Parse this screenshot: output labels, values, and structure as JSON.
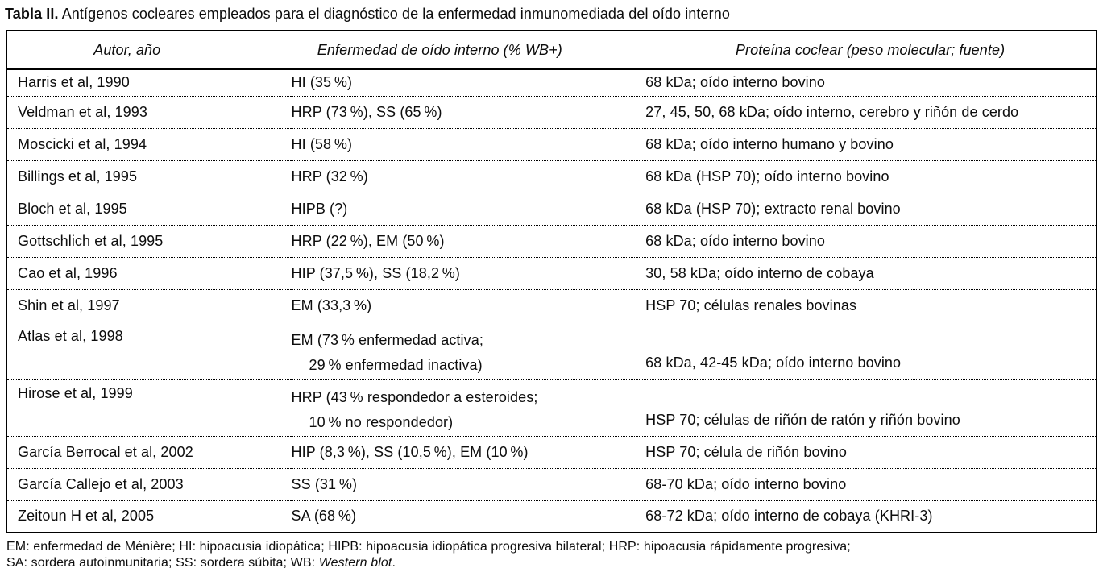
{
  "page": {
    "title_label": "Tabla II.",
    "title_text": "Antígenos cocleares empleados para el diagnóstico de la enfermedad inmunomediada del oído interno"
  },
  "table": {
    "columns": [
      "Autor, año",
      "Enfermedad de oído interno (% WB+)",
      "Proteína coclear (peso molecular; fuente)"
    ],
    "rows": [
      {
        "author": "Harris et al, 1990",
        "disease": [
          "HI (35 %)"
        ],
        "protein": "68 kDa; oído interno bovino"
      },
      {
        "author": "Veldman et al, 1993",
        "disease": [
          "HRP (73 %), SS (65 %)"
        ],
        "protein": "27, 45, 50, 68 kDa; oído interno, cerebro y riñón de cerdo"
      },
      {
        "author": "Moscicki et al, 1994",
        "disease": [
          "HI (58 %)"
        ],
        "protein": "68 kDa; oído interno humano y bovino"
      },
      {
        "author": "Billings et al, 1995",
        "disease": [
          "HRP (32 %)"
        ],
        "protein": "68 kDa (HSP 70); oído interno bovino"
      },
      {
        "author": "Bloch et al, 1995",
        "disease": [
          "HIPB (?)"
        ],
        "protein": "68 kDa (HSP 70); extracto renal bovino"
      },
      {
        "author": "Gottschlich et al, 1995",
        "disease": [
          "HRP (22 %), EM (50 %)"
        ],
        "protein": "68 kDa; oído interno bovino"
      },
      {
        "author": "Cao et al, 1996",
        "disease": [
          "HIP (37,5 %), SS (18,2 %)"
        ],
        "protein": "30, 58 kDa; oído interno de cobaya"
      },
      {
        "author": "Shin et al, 1997",
        "disease": [
          "EM (33,3 %)"
        ],
        "protein": "HSP 70; células renales bovinas"
      },
      {
        "author": "Atlas et al, 1998",
        "disease": [
          "EM (73 % enfermedad activa;",
          "29 % enfermedad inactiva)"
        ],
        "protein": "68 kDa, 42-45 kDa; oído interno bovino"
      },
      {
        "author": "Hirose et al, 1999",
        "disease": [
          "HRP (43 % respondedor a esteroides;",
          "10 % no respondedor)"
        ],
        "protein": "HSP 70; células de riñón de ratón y riñón bovino"
      },
      {
        "author": "García Berrocal et al, 2002",
        "disease": [
          "HIP (8,3 %), SS (10,5 %), EM (10 %)"
        ],
        "protein": "HSP 70; célula de riñón bovino"
      },
      {
        "author": "García Callejo et al, 2003",
        "disease": [
          "SS (31 %)"
        ],
        "protein": "68-70 kDa; oído interno bovino"
      },
      {
        "author": "Zeitoun H et al, 2005",
        "disease": [
          "SA (68 %)"
        ],
        "protein": "68-72 kDa; oído interno de cobaya (KHRI-3)"
      }
    ],
    "footnotes": {
      "line1": "EM: enfermedad de Ménière; HI: hipoacusia idiopática; HIPB: hipoacusia idiopática progresiva bilateral; HRP: hipoacusia rápidamente progresiva;",
      "line2_prefix": "SA: sordera autoinmunitaria; SS: sordera súbita; WB: ",
      "line2_italic": "Western blot",
      "line2_suffix": "."
    }
  },
  "colors": {
    "text": "#0d0d0d",
    "background": "#ffffff",
    "border": "#000000"
  }
}
